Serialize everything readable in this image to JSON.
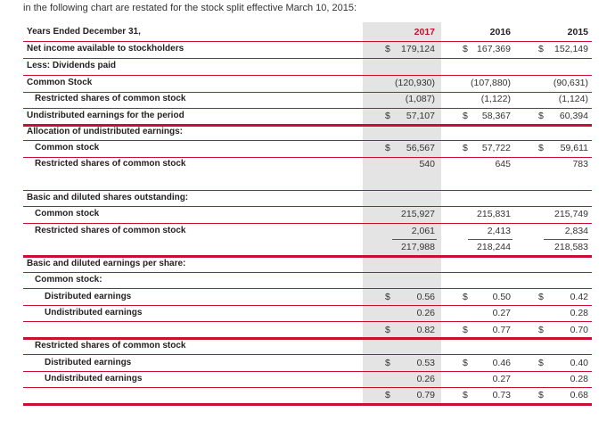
{
  "intro_cut": "in the following chart are restated for the stock split effective March 10, 2015 —",
  "intro": "in the following chart are restated for the stock split effective March 10, 2015:",
  "header": {
    "label": "Years Ended December 31,",
    "y2017": "2017",
    "y2016": "2016",
    "y2015": "2015"
  },
  "net_income": {
    "label": "Net income available to stockholders",
    "d": "$",
    "v2017": "179,124",
    "v2016": "167,369",
    "v2015": "152,149"
  },
  "less_div": {
    "label": "Less: Dividends paid"
  },
  "common_stock": {
    "label": "Common Stock",
    "v2017": "(120,930)",
    "v2016": "(107,880)",
    "v2015": "(90,631)"
  },
  "restricted": {
    "label": "Restricted shares of common stock",
    "v2017": "(1,087)",
    "v2016": "(1,122)",
    "v2015": "(1,124)"
  },
  "undistributed": {
    "label": "Undistributed earnings for the period",
    "d": "$",
    "v2017": "57,107",
    "v2016": "58,367",
    "v2015": "60,394"
  },
  "allocation": {
    "label": "Allocation of undistributed earnings:"
  },
  "alloc_common": {
    "label": "Common stock",
    "d": "$",
    "v2017": "56,567",
    "v2016": "57,722",
    "v2015": "59,611"
  },
  "alloc_restricted": {
    "label": "Restricted shares of common stock",
    "v2017": "540",
    "v2016": "645",
    "v2015": "783"
  },
  "shares_head": {
    "label": "Basic and diluted shares outstanding:"
  },
  "shares_common": {
    "label": "Common stock",
    "v2017": "215,927",
    "v2016": "215,831",
    "v2015": "215,749"
  },
  "shares_restricted": {
    "label": "Restricted shares of common stock",
    "v2017": "2,061",
    "v2016": "2,413",
    "v2015": "2,834"
  },
  "shares_total": {
    "v2017": "217,988",
    "v2016": "218,244",
    "v2015": "218,583"
  },
  "eps_head": {
    "label": "Basic and diluted earnings per share:"
  },
  "eps_common_head": {
    "label": "Common stock:"
  },
  "eps_c_dist": {
    "label": "Distributed earnings",
    "d": "$",
    "v2017": "0.56",
    "v2016": "0.50",
    "v2015": "0.42"
  },
  "eps_c_undist": {
    "label": "Undistributed earnings",
    "v2017": "0.26",
    "v2016": "0.27",
    "v2015": "0.28"
  },
  "eps_c_total": {
    "d": "$",
    "v2017": "0.82",
    "v2016": "0.77",
    "v2015": "0.70"
  },
  "eps_restricted_head": {
    "label": "Restricted shares of common stock"
  },
  "eps_r_dist": {
    "label": "Distributed earnings",
    "d": "$",
    "v2017": "0.53",
    "v2016": "0.46",
    "v2015": "0.40"
  },
  "eps_r_undist": {
    "label": "Undistributed earnings",
    "v2017": "0.26",
    "v2016": "0.27",
    "v2015": "0.28"
  },
  "eps_r_total": {
    "d": "$",
    "v2017": "0.79",
    "v2016": "0.73",
    "v2015": "0.68"
  },
  "colors": {
    "accent": "#c8102e",
    "shade": "#e4e4e4"
  }
}
